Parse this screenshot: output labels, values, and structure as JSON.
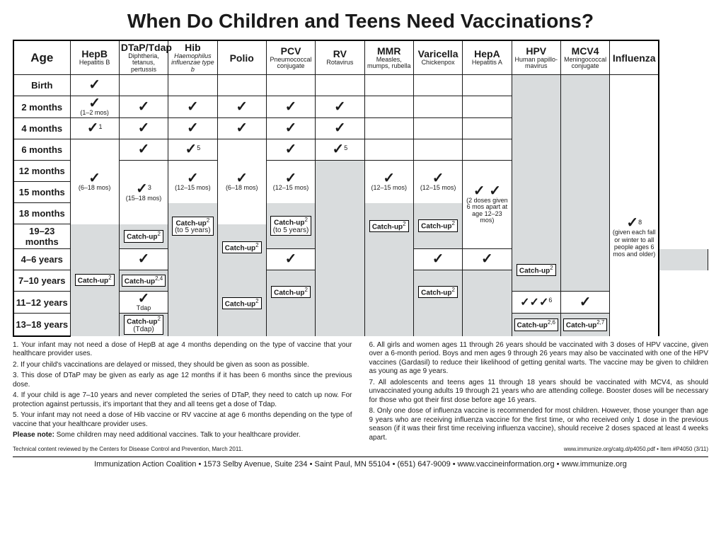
{
  "title": "When Do Children and Teens Need Vaccinations?",
  "cols": {
    "age": "Age",
    "hepb": {
      "h": "HepB",
      "s": "Hepatitis B"
    },
    "dtap": {
      "h": "DTaP/Tdap",
      "s": "Diphtheria, tetanus, pertussis"
    },
    "hib": {
      "h": "Hib",
      "s": "Haemophilus influenzae type b"
    },
    "polio": {
      "h": "Polio",
      "s": ""
    },
    "pcv": {
      "h": "PCV",
      "s": "Pneumococcal conjugate"
    },
    "rv": {
      "h": "RV",
      "s": "Rotavirus"
    },
    "mmr": {
      "h": "MMR",
      "s": "Measles, mumps, rubella"
    },
    "var": {
      "h": "Varicella",
      "s": "Chickenpox"
    },
    "hepa": {
      "h": "HepA",
      "s": "Hepatitis A"
    },
    "hpv": {
      "h": "HPV",
      "s": "Human papillo-mavirus"
    },
    "mcv4": {
      "h": "MCV4",
      "s": "Meningococcal conjugate"
    },
    "flu": {
      "h": "Influenza",
      "s": ""
    }
  },
  "rows": [
    "Birth",
    "2 months",
    "4 months",
    "6 months",
    "12 months",
    "15 months",
    "18 months",
    "19–23 months",
    "4–6 years",
    "7–10 years",
    "11–12 years",
    "13–18 years"
  ],
  "notes": {
    "n2mos_hepb": "(1–2 mos)",
    "n4mos_hepb_sup": "1",
    "hib6_sup": "5",
    "rv6_sup": "5",
    "hepb_span": "(6–18 mos)",
    "dtap_span": "(15–18 mos)",
    "dtap_span_sup": "3",
    "hib_span": "(12–15 mos)",
    "polio_span": "(6–18 mos)",
    "pcv_span": "(12–15 mos)",
    "mmr_span": "(12–15 mos)",
    "var_span": "(12–15 mos)",
    "hepa_span": "(2 doses given 6 mos apart at age 12–23 mos)",
    "catchup": "Catch-up",
    "catchup_5yrs_hib": "(to 5 years)",
    "catchup_5yrs_pcv": "(to 5 years)",
    "catchup_710_sup": "2,4",
    "catchup_1318_dtap": "(Tdap)",
    "tdap1112": "Tdap",
    "hpv1112": "✓✓✓",
    "hpv1112_sup": "6",
    "catchup_hpv_sup": "2,6",
    "catchup_mcv_sup": "2,7",
    "flu_sup": "8",
    "flu_text": "(given each fall or winter to all people ages 6 mos and older)"
  },
  "fn_left": [
    "1. Your infant may not need a dose of HepB at age 4 months depending on the type of vaccine that your healthcare provider uses.",
    "2. If your child's vaccinations are delayed or missed, they should be given as soon as possible.",
    "3. This dose of DTaP may be given as early as age 12 months if it has been 6 months since the previous dose.",
    "4. If your child is age 7–10 years and never completed the series of DTaP, they need to catch up now. For protection against pertussis, it's important that they and all teens get a dose of Tdap.",
    "5. Your infant may not need a dose of Hib vaccine or RV vaccine at age 6 months depending on the type of vaccine that your healthcare provider uses."
  ],
  "fn_right": [
    "6. All girls and women ages 11 through 26 years should be vaccinated with 3 doses of HPV vaccine, given over a 6-month period. Boys and men ages 9 through 26 years may also be vaccinated with one of the HPV vaccines (Gardasil) to reduce their likelihood of getting genital warts. The vaccine may be given to children as young as age 9 years.",
    "7. All adolescents and teens ages 11 through 18 years should be vaccinated with MCV4, as should unvaccinated young adults 19 through 21 years who are attending college. Booster doses will be necessary for those who got their first dose before age 16 years.",
    "8. Only one dose of influenza vaccine is recommended for most children. However, those younger than age 9 years who are receiving influenza vaccine for the first time, or who received only 1 dose in the previous season (if it was their first time receiving influenza vaccine), should receive 2 doses spaced at least 4 weeks apart."
  ],
  "pleasenote": "Please note: Some children may need additional vaccines. Talk to your healthcare provider.",
  "tech": "Technical content reviewed by the Centers for Disease Control and Prevention, March 2011.",
  "itemline": "www.immunize.org/catg.d/p4050.pdf  •  Item #P4050 (3/11)",
  "bottom": "Immunization Action Coalition   •   1573 Selby Avenue, Suite 234   •   Saint Paul, MN 55104   •   (651) 647-9009   •   www.vaccineinformation.org   •   www.immunize.org",
  "colors": {
    "gray": "#d9dcdd"
  }
}
